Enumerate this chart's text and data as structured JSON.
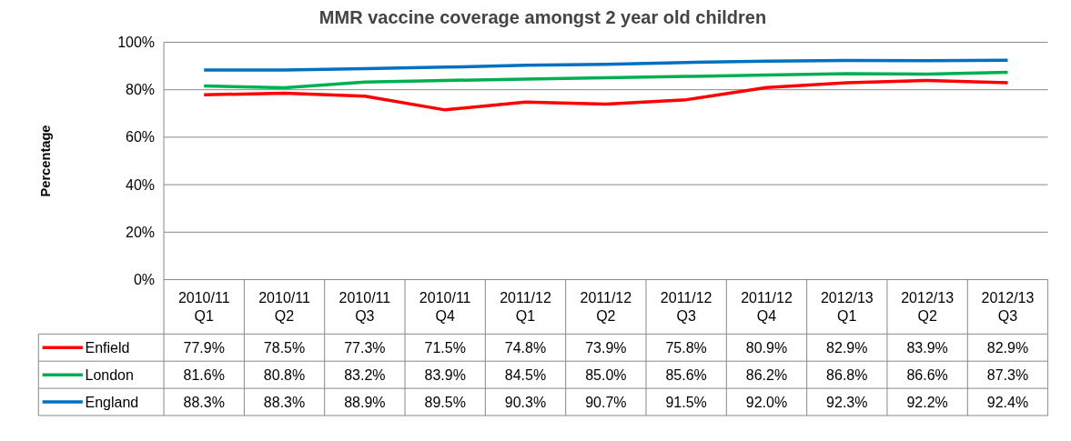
{
  "chart_data": {
    "type": "line",
    "title": "MMR vaccine coverage amongst 2 year old children",
    "ylabel": "Percentage",
    "categories": [
      "2010/11\nQ1",
      "2010/11\nQ2",
      "2010/11\nQ3",
      "2010/11\nQ4",
      "2011/12\nQ1",
      "2011/12\nQ2",
      "2011/12\nQ3",
      "2011/12\nQ4",
      "2012/13\nQ1",
      "2012/13\nQ2",
      "2012/13\nQ3"
    ],
    "series": [
      {
        "name": "Enfield",
        "color": "#ff0000",
        "values": [
          77.9,
          78.5,
          77.3,
          71.5,
          74.8,
          73.9,
          75.8,
          80.9,
          82.9,
          83.9,
          82.9
        ],
        "value_labels": [
          "77.9%",
          "78.5%",
          "77.3%",
          "71.5%",
          "74.8%",
          "73.9%",
          "75.8%",
          "80.9%",
          "82.9%",
          "83.9%",
          "82.9%"
        ]
      },
      {
        "name": "London",
        "color": "#00b050",
        "values": [
          81.6,
          80.8,
          83.2,
          83.9,
          84.5,
          85.0,
          85.6,
          86.2,
          86.8,
          86.6,
          87.3
        ],
        "value_labels": [
          "81.6%",
          "80.8%",
          "83.2%",
          "83.9%",
          "84.5%",
          "85.0%",
          "85.6%",
          "86.2%",
          "86.8%",
          "86.6%",
          "87.3%"
        ]
      },
      {
        "name": "England",
        "color": "#0070c0",
        "values": [
          88.3,
          88.3,
          88.9,
          89.5,
          90.3,
          90.7,
          91.5,
          92.0,
          92.3,
          92.2,
          92.4
        ],
        "value_labels": [
          "88.3%",
          "88.3%",
          "88.9%",
          "89.5%",
          "90.3%",
          "90.7%",
          "91.5%",
          "92.0%",
          "92.3%",
          "92.2%",
          "92.4%"
        ]
      }
    ],
    "ylim": [
      0,
      100
    ],
    "yticks": [
      {
        "value": 0,
        "label": "0%"
      },
      {
        "value": 20,
        "label": "20%"
      },
      {
        "value": 40,
        "label": "40%"
      },
      {
        "value": 60,
        "label": "60%"
      },
      {
        "value": 80,
        "label": "80%"
      },
      {
        "value": 100,
        "label": "100%"
      }
    ],
    "grid": "y",
    "legend": "bottom",
    "marker": "none",
    "line_style": "solid"
  }
}
